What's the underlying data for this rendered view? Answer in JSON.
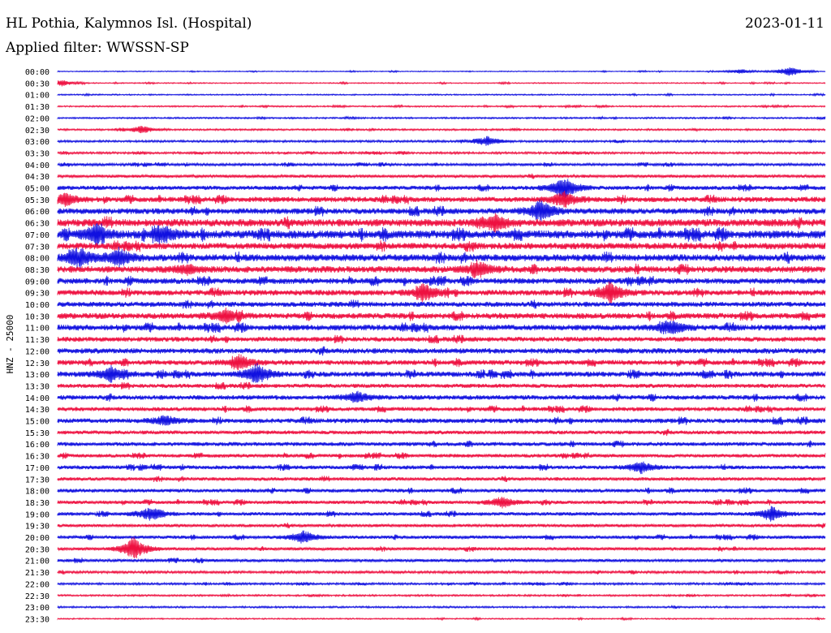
{
  "header": {
    "station": "HL Pothia, Kalymnos Isl. (Hospital)",
    "date": "2023-01-11",
    "filter": "Applied filter: WWSSN-SP"
  },
  "chart_data": {
    "type": "line",
    "title": "HL Pothia, Kalymnos Isl. (Hospital)",
    "ylabel": "HNZ - 25000",
    "colors": [
      "#1010e0",
      "#ee1040"
    ],
    "rows": [
      "00:00",
      "00:30",
      "01:00",
      "01:30",
      "02:00",
      "02:30",
      "03:00",
      "03:30",
      "04:00",
      "04:30",
      "05:00",
      "05:30",
      "06:00",
      "06:30",
      "07:00",
      "07:30",
      "08:00",
      "08:30",
      "09:00",
      "09:30",
      "10:00",
      "10:30",
      "11:00",
      "11:30",
      "12:00",
      "12:30",
      "13:00",
      "13:30",
      "14:00",
      "14:30",
      "15:00",
      "15:30",
      "16:00",
      "16:30",
      "17:00",
      "17:30",
      "18:00",
      "18:30",
      "19:00",
      "19:30",
      "20:00",
      "20:30",
      "21:00",
      "21:30",
      "22:00",
      "22:30",
      "23:00",
      "23:30"
    ],
    "noise_level": [
      0.6,
      0.7,
      0.8,
      0.9,
      1.0,
      1.1,
      1.3,
      1.3,
      1.6,
      1.9,
      2.6,
      3.3,
      3.6,
      4.6,
      5.0,
      4.0,
      4.3,
      4.0,
      3.6,
      3.5,
      3.2,
      3.6,
      3.6,
      3.0,
      3.3,
      3.1,
      3.3,
      2.6,
      2.9,
      2.6,
      2.9,
      2.4,
      2.5,
      2.3,
      2.4,
      2.2,
      2.3,
      2.2,
      2.2,
      2.0,
      2.1,
      2.0,
      1.9,
      1.6,
      1.3,
      1.1,
      1.1,
      0.8
    ],
    "events": [
      {
        "row": 0,
        "t": 0.955,
        "amp": 6
      },
      {
        "row": 0,
        "t": 0.89,
        "amp": 3
      },
      {
        "row": 1,
        "t": 0.005,
        "amp": 4
      },
      {
        "row": 5,
        "t": 0.11,
        "amp": 5
      },
      {
        "row": 6,
        "t": 0.56,
        "amp": 6
      },
      {
        "row": 10,
        "t": 0.66,
        "amp": 14
      },
      {
        "row": 11,
        "t": 0.66,
        "amp": 10
      },
      {
        "row": 11,
        "t": 0.01,
        "amp": 8
      },
      {
        "row": 12,
        "t": 0.63,
        "amp": 14
      },
      {
        "row": 13,
        "t": 0.57,
        "amp": 10
      },
      {
        "row": 14,
        "t": 0.05,
        "amp": 10
      },
      {
        "row": 14,
        "t": 0.14,
        "amp": 9
      },
      {
        "row": 16,
        "t": 0.03,
        "amp": 11
      },
      {
        "row": 16,
        "t": 0.08,
        "amp": 10
      },
      {
        "row": 17,
        "t": 0.17,
        "amp": 6
      },
      {
        "row": 17,
        "t": 0.55,
        "amp": 8
      },
      {
        "row": 19,
        "t": 0.48,
        "amp": 9
      },
      {
        "row": 19,
        "t": 0.72,
        "amp": 13
      },
      {
        "row": 21,
        "t": 0.22,
        "amp": 8
      },
      {
        "row": 22,
        "t": 0.8,
        "amp": 8
      },
      {
        "row": 25,
        "t": 0.24,
        "amp": 8
      },
      {
        "row": 26,
        "t": 0.07,
        "amp": 9
      },
      {
        "row": 26,
        "t": 0.26,
        "amp": 13
      },
      {
        "row": 28,
        "t": 0.39,
        "amp": 7
      },
      {
        "row": 30,
        "t": 0.14,
        "amp": 6
      },
      {
        "row": 34,
        "t": 0.76,
        "amp": 7
      },
      {
        "row": 37,
        "t": 0.58,
        "amp": 7
      },
      {
        "row": 38,
        "t": 0.12,
        "amp": 8
      },
      {
        "row": 38,
        "t": 0.93,
        "amp": 9
      },
      {
        "row": 40,
        "t": 0.32,
        "amp": 8
      },
      {
        "row": 41,
        "t": 0.1,
        "amp": 14
      }
    ]
  }
}
